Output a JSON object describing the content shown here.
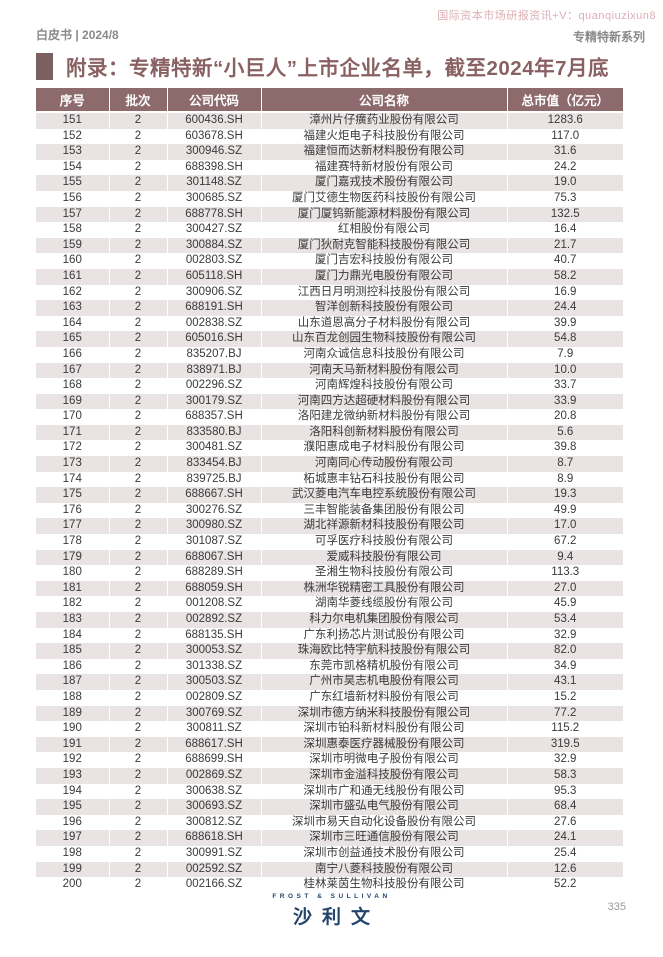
{
  "watermark": "国际资本市场研报资讯+V：quanqiuzixun8",
  "header": {
    "left": "白皮书 | 2024/8",
    "right": "专精特新系列"
  },
  "title": "附录：专精特新“小巨人”上市企业名单，截至2024年7月底",
  "table": {
    "headers": [
      "序号",
      "批次",
      "公司代码",
      "公司名称",
      "总市值（亿元）"
    ],
    "col_keys": [
      "cell-serial",
      "cell-batch",
      "cell-code",
      "cell-name",
      "cell-marketcap"
    ],
    "rows": [
      [
        "151",
        "2",
        "600436.SH",
        "漳州片仔癀药业股份有限公司",
        "1283.6"
      ],
      [
        "152",
        "2",
        "603678.SH",
        "福建火炬电子科技股份有限公司",
        "117.0"
      ],
      [
        "153",
        "2",
        "300946.SZ",
        "福建恒而达新材料股份有限公司",
        "31.6"
      ],
      [
        "154",
        "2",
        "688398.SH",
        "福建赛特新材股份有限公司",
        "24.2"
      ],
      [
        "155",
        "2",
        "301148.SZ",
        "厦门嘉戎技术股份有限公司",
        "19.0"
      ],
      [
        "156",
        "2",
        "300685.SZ",
        "厦门艾德生物医药科技股份有限公司",
        "75.3"
      ],
      [
        "157",
        "2",
        "688778.SH",
        "厦门厦钨新能源材料股份有限公司",
        "132.5"
      ],
      [
        "158",
        "2",
        "300427.SZ",
        "红相股份有限公司",
        "16.4"
      ],
      [
        "159",
        "2",
        "300884.SZ",
        "厦门狄耐克智能科技股份有限公司",
        "21.7"
      ],
      [
        "160",
        "2",
        "002803.SZ",
        "厦门吉宏科技股份有限公司",
        "40.7"
      ],
      [
        "161",
        "2",
        "605118.SH",
        "厦门力鼎光电股份有限公司",
        "58.2"
      ],
      [
        "162",
        "2",
        "300906.SZ",
        "江西日月明测控科技股份有限公司",
        "16.9"
      ],
      [
        "163",
        "2",
        "688191.SH",
        "智洋创新科技股份有限公司",
        "24.4"
      ],
      [
        "164",
        "2",
        "002838.SZ",
        "山东道恩高分子材料股份有限公司",
        "39.9"
      ],
      [
        "165",
        "2",
        "605016.SH",
        "山东百龙创园生物科技股份有限公司",
        "54.8"
      ],
      [
        "166",
        "2",
        "835207.BJ",
        "河南众诚信息科技股份有限公司",
        "7.9"
      ],
      [
        "167",
        "2",
        "838971.BJ",
        "河南天马新材料股份有限公司",
        "10.0"
      ],
      [
        "168",
        "2",
        "002296.SZ",
        "河南辉煌科技股份有限公司",
        "33.7"
      ],
      [
        "169",
        "2",
        "300179.SZ",
        "河南四方达超硬材料股份有限公司",
        "33.9"
      ],
      [
        "170",
        "2",
        "688357.SH",
        "洛阳建龙微纳新材料股份有限公司",
        "20.8"
      ],
      [
        "171",
        "2",
        "833580.BJ",
        "洛阳科创新材料股份有限公司",
        "5.6"
      ],
      [
        "172",
        "2",
        "300481.SZ",
        "濮阳惠成电子材料股份有限公司",
        "39.8"
      ],
      [
        "173",
        "2",
        "833454.BJ",
        "河南同心传动股份有限公司",
        "8.7"
      ],
      [
        "174",
        "2",
        "839725.BJ",
        "柘城惠丰钻石科技股份有限公司",
        "8.9"
      ],
      [
        "175",
        "2",
        "688667.SH",
        "武汉菱电汽车电控系统股份有限公司",
        "19.3"
      ],
      [
        "176",
        "2",
        "300276.SZ",
        "三丰智能装备集团股份有限公司",
        "49.9"
      ],
      [
        "177",
        "2",
        "300980.SZ",
        "湖北祥源新材科技股份有限公司",
        "17.0"
      ],
      [
        "178",
        "2",
        "301087.SZ",
        "可孚医疗科技股份有限公司",
        "67.2"
      ],
      [
        "179",
        "2",
        "688067.SH",
        "爱威科技股份有限公司",
        "9.4"
      ],
      [
        "180",
        "2",
        "688289.SH",
        "圣湘生物科技股份有限公司",
        "113.3"
      ],
      [
        "181",
        "2",
        "688059.SH",
        "株洲华锐精密工具股份有限公司",
        "27.0"
      ],
      [
        "182",
        "2",
        "001208.SZ",
        "湖南华菱线缆股份有限公司",
        "45.9"
      ],
      [
        "183",
        "2",
        "002892.SZ",
        "科力尔电机集团股份有限公司",
        "53.4"
      ],
      [
        "184",
        "2",
        "688135.SH",
        "广东利扬芯片测试股份有限公司",
        "32.9"
      ],
      [
        "185",
        "2",
        "300053.SZ",
        "珠海欧比特宇航科技股份有限公司",
        "82.0"
      ],
      [
        "186",
        "2",
        "301338.SZ",
        "东莞市凯格精机股份有限公司",
        "34.9"
      ],
      [
        "187",
        "2",
        "300503.SZ",
        "广州市昊志机电股份有限公司",
        "43.1"
      ],
      [
        "188",
        "2",
        "002809.SZ",
        "广东红墙新材料股份有限公司",
        "15.2"
      ],
      [
        "189",
        "2",
        "300769.SZ",
        "深圳市德方纳米科技股份有限公司",
        "77.2"
      ],
      [
        "190",
        "2",
        "300811.SZ",
        "深圳市铂科新材料股份有限公司",
        "115.2"
      ],
      [
        "191",
        "2",
        "688617.SH",
        "深圳惠泰医疗器械股份有限公司",
        "319.5"
      ],
      [
        "192",
        "2",
        "688699.SH",
        "深圳市明微电子股份有限公司",
        "32.9"
      ],
      [
        "193",
        "2",
        "002869.SZ",
        "深圳市金溢科技股份有限公司",
        "58.3"
      ],
      [
        "194",
        "2",
        "300638.SZ",
        "深圳市广和通无线股份有限公司",
        "95.3"
      ],
      [
        "195",
        "2",
        "300693.SZ",
        "深圳市盛弘电气股份有限公司",
        "68.4"
      ],
      [
        "196",
        "2",
        "300812.SZ",
        "深圳市易天自动化设备股份有限公司",
        "27.6"
      ],
      [
        "197",
        "2",
        "688618.SH",
        "深圳市三旺通信股份有限公司",
        "24.1"
      ],
      [
        "198",
        "2",
        "300991.SZ",
        "深圳市创益通技术股份有限公司",
        "25.4"
      ],
      [
        "199",
        "2",
        "002592.SZ",
        "南宁八菱科技股份有限公司",
        "12.6"
      ],
      [
        "200",
        "2",
        "002166.SZ",
        "桂林莱茵生物科技股份有限公司",
        "52.2"
      ]
    ]
  },
  "footer": {
    "brand_en": "FROST & SULLIVAN",
    "brand_cn": "沙利文",
    "page_number": "335"
  },
  "colors": {
    "table_header_bg": "#8d6b6d",
    "row_alt_bg": "#e9e3e3",
    "accent_square": "#7c5f60",
    "title_text": "#8a6163",
    "brand_navy": "#24456b",
    "watermark_pink": "#ddadb3",
    "meta_gray": "#8a8a8a"
  }
}
